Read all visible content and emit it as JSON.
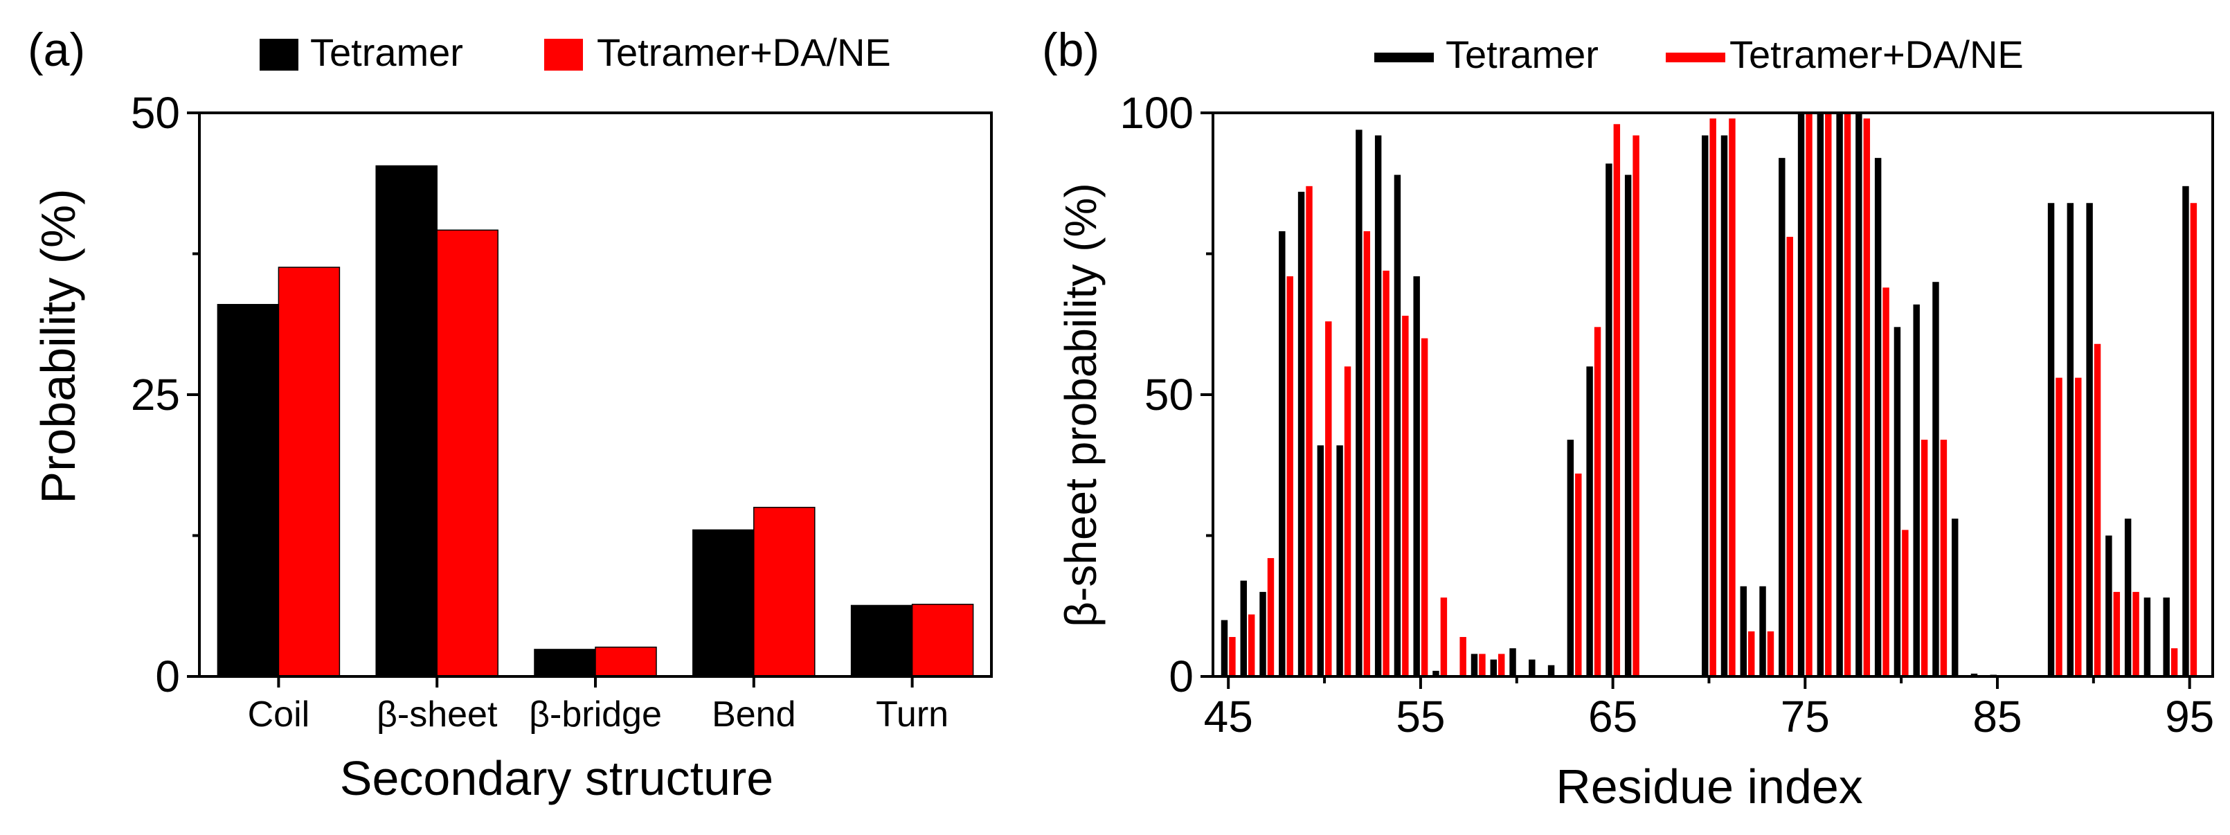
{
  "colors": {
    "series_1": "#000000",
    "series_2": "#ff0000",
    "axis": "#000000",
    "background": "#ffffff"
  },
  "chart_data": [
    {
      "panel_label": "(a)",
      "type": "bar",
      "title": "",
      "xlabel": "Secondary structure",
      "ylabel": "Probability (%)",
      "categories": [
        "Coil",
        "β-sheet",
        "β-bridge",
        "Bend",
        "Turn"
      ],
      "series": [
        {
          "name": "Tetramer",
          "values": [
            33.0,
            45.3,
            2.4,
            13.0,
            6.3
          ]
        },
        {
          "name": "Tetramer+DA/NE",
          "values": [
            36.3,
            39.6,
            2.6,
            15.0,
            6.4
          ]
        }
      ],
      "ylim": [
        0,
        50
      ],
      "yticks": [
        0,
        25,
        50
      ],
      "legend_position": "top",
      "grid": false
    },
    {
      "panel_label": "(b)",
      "type": "bar",
      "title": "",
      "xlabel": "Residue index",
      "ylabel": "β-sheet probability (%)",
      "x": [
        45,
        46,
        47,
        48,
        49,
        50,
        51,
        52,
        53,
        54,
        55,
        56,
        57,
        58,
        59,
        60,
        61,
        62,
        63,
        64,
        65,
        66,
        67,
        68,
        69,
        70,
        71,
        72,
        73,
        74,
        75,
        76,
        77,
        78,
        79,
        80,
        81,
        82,
        83,
        84,
        85,
        86,
        87,
        88,
        89,
        90,
        91,
        92,
        93,
        94,
        95
      ],
      "series": [
        {
          "name": "Tetramer",
          "values": [
            10,
            17,
            15,
            79,
            86,
            41,
            41,
            97,
            96,
            89,
            71,
            1,
            0,
            4,
            3,
            5,
            3,
            2,
            42,
            55,
            91,
            89,
            0,
            0,
            0,
            96,
            96,
            16,
            16,
            92,
            100,
            100,
            100,
            100,
            92,
            62,
            66,
            70,
            28,
            0.5,
            0.3,
            0,
            0,
            84,
            84,
            84,
            25,
            28,
            14,
            14,
            87
          ]
        },
        {
          "name": "Tetramer+DA/NE",
          "values": [
            7,
            11,
            21,
            71,
            87,
            63,
            55,
            79,
            72,
            64,
            60,
            14,
            7,
            4,
            4,
            0,
            0,
            0,
            36,
            62,
            98,
            96,
            0,
            0,
            0,
            99,
            99,
            8,
            8,
            78,
            100,
            100,
            100,
            99,
            69,
            26,
            42,
            42,
            0,
            0,
            0,
            0,
            0,
            53,
            53,
            59,
            15,
            15,
            0,
            5,
            84
          ]
        }
      ],
      "xlim": [
        44.2,
        96.2
      ],
      "ylim": [
        0,
        100
      ],
      "xticks": [
        45,
        55,
        65,
        75,
        85,
        95
      ],
      "yticks": [
        0,
        50,
        100
      ],
      "legend_position": "top",
      "grid": false
    }
  ]
}
